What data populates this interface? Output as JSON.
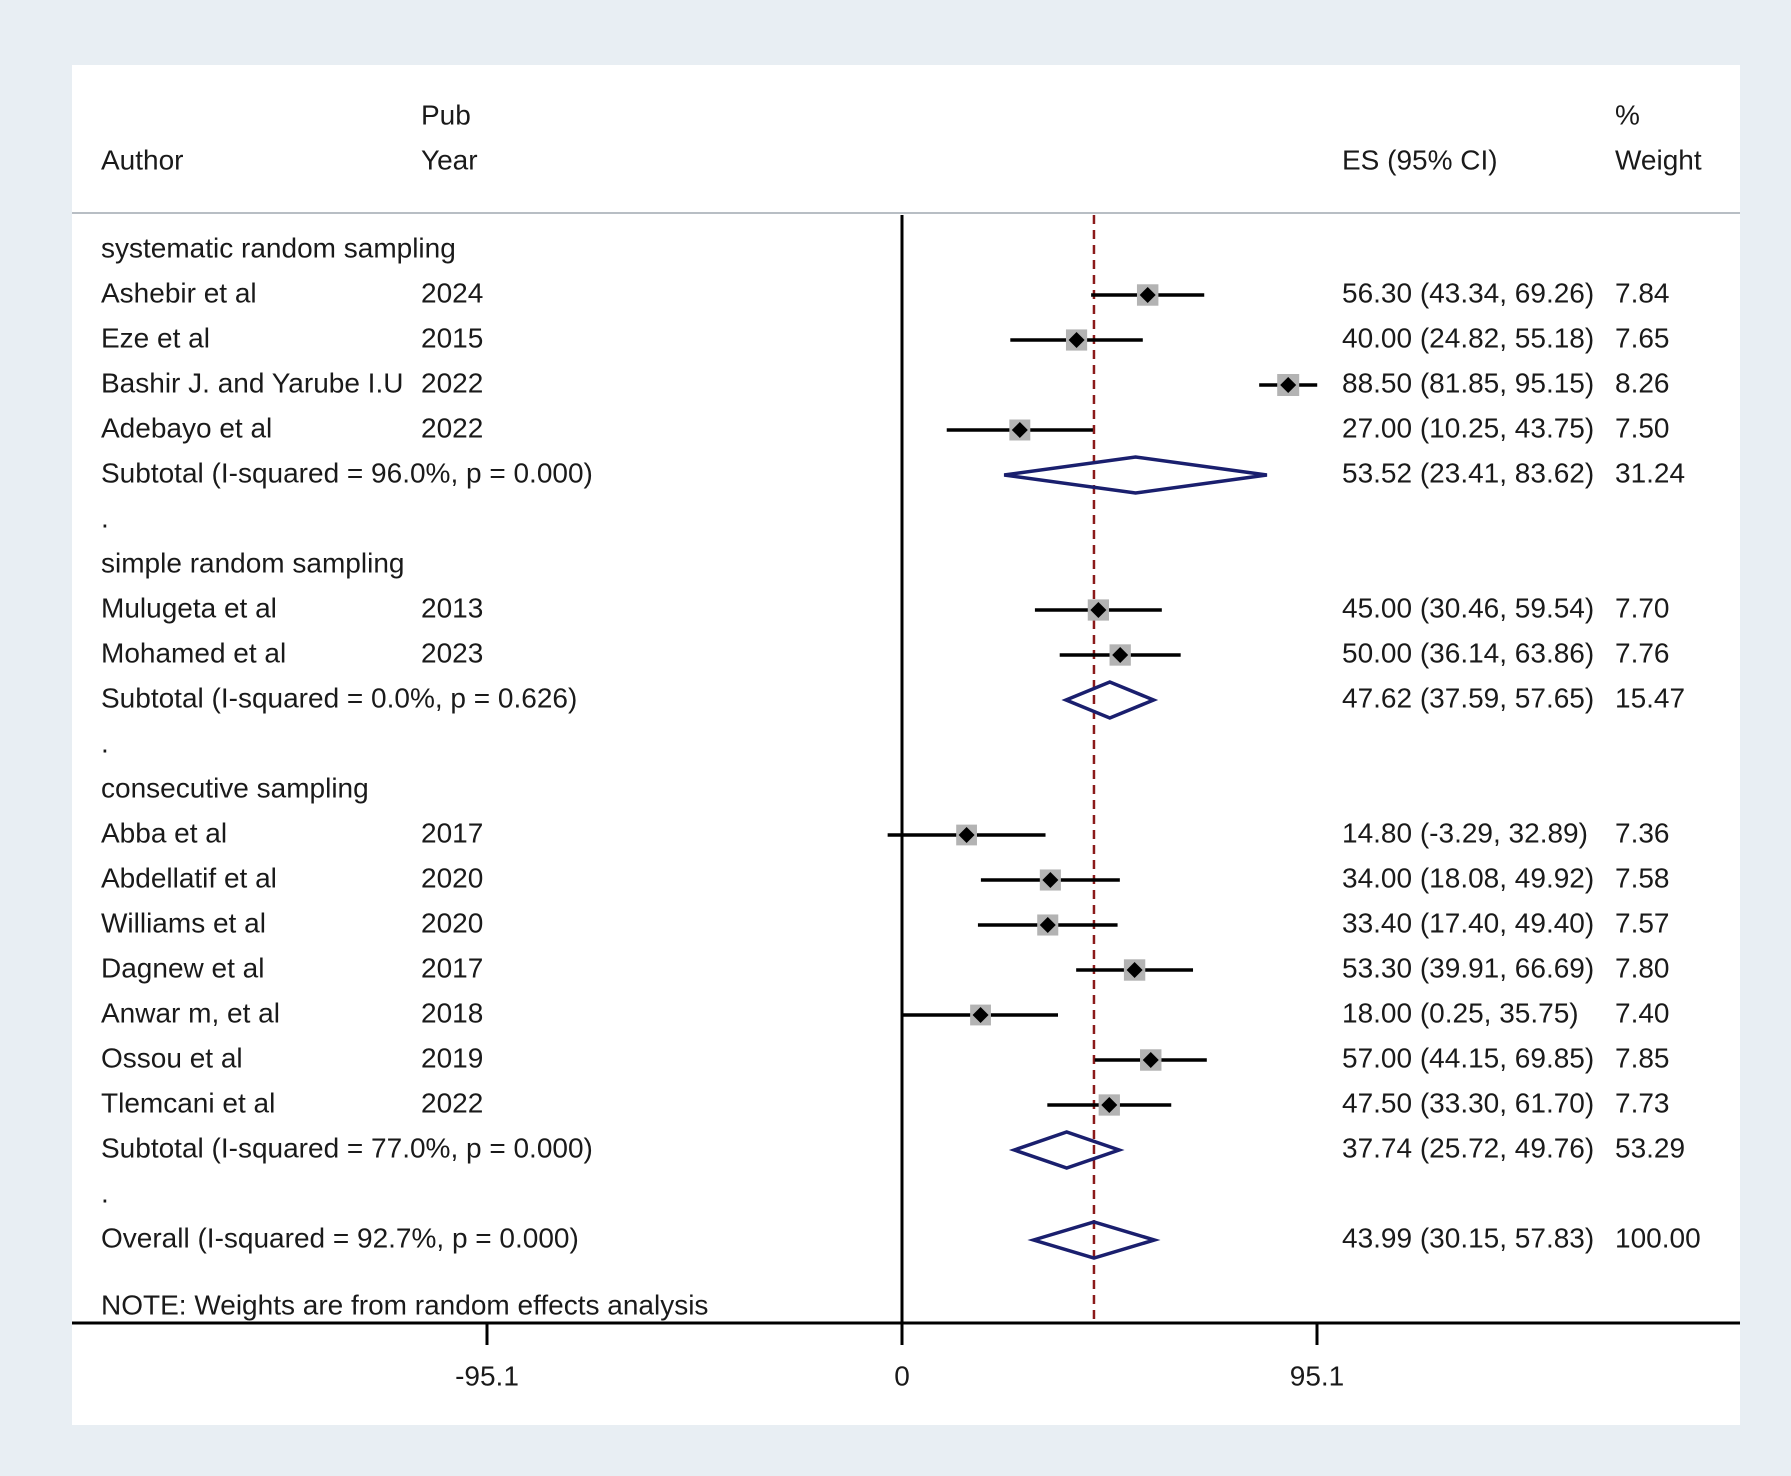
{
  "chart_data": {
    "type": "forest",
    "headers": {
      "author": "Author",
      "pub_top": "Pub",
      "pub_bottom": "Year",
      "es": "ES (95% CI)",
      "weight_top": "%",
      "weight_bottom": "Weight"
    },
    "xaxis": {
      "ticks": [
        -95.1,
        0,
        95.1
      ],
      "tick_labels": [
        "-95.1",
        "0",
        "95.1"
      ],
      "range": [
        -95.1,
        95.1
      ]
    },
    "overall_line": 43.99,
    "groups": [
      {
        "label": "systematic random sampling",
        "studies": [
          {
            "author": "Ashebir et al",
            "year": "2024",
            "es": 56.3,
            "lo": 43.34,
            "hi": 69.26,
            "es_text": "56.30 (43.34, 69.26)",
            "weight": "7.84"
          },
          {
            "author": "Eze et al",
            "year": "2015",
            "es": 40.0,
            "lo": 24.82,
            "hi": 55.18,
            "es_text": "40.00 (24.82, 55.18)",
            "weight": "7.65"
          },
          {
            "author": "Bashir J. and Yarube I.U",
            "year": "2022",
            "es": 88.5,
            "lo": 81.85,
            "hi": 95.15,
            "es_text": "88.50 (81.85, 95.15)",
            "weight": "8.26"
          },
          {
            "author": "Adebayo et al",
            "year": "2022",
            "es": 27.0,
            "lo": 10.25,
            "hi": 43.75,
            "es_text": "27.00 (10.25, 43.75)",
            "weight": "7.50"
          }
        ],
        "subtotal": {
          "label": "Subtotal  (I-squared = 96.0%, p = 0.000)",
          "es": 53.52,
          "lo": 23.41,
          "hi": 83.62,
          "es_text": "53.52 (23.41, 83.62)",
          "weight": "31.24"
        }
      },
      {
        "label": "simple random sampling",
        "studies": [
          {
            "author": "Mulugeta et al",
            "year": "2013",
            "es": 45.0,
            "lo": 30.46,
            "hi": 59.54,
            "es_text": "45.00 (30.46, 59.54)",
            "weight": "7.70"
          },
          {
            "author": "Mohamed et al",
            "year": "2023",
            "es": 50.0,
            "lo": 36.14,
            "hi": 63.86,
            "es_text": "50.00 (36.14, 63.86)",
            "weight": "7.76"
          }
        ],
        "subtotal": {
          "label": "Subtotal  (I-squared = 0.0%, p = 0.626)",
          "es": 47.62,
          "lo": 37.59,
          "hi": 57.65,
          "es_text": "47.62 (37.59, 57.65)",
          "weight": "15.47"
        }
      },
      {
        "label": "consecutive sampling",
        "studies": [
          {
            "author": "Abba et al",
            "year": "2017",
            "es": 14.8,
            "lo": -3.29,
            "hi": 32.89,
            "es_text": "14.80 (-3.29, 32.89)",
            "weight": "7.36"
          },
          {
            "author": "Abdellatif et al",
            "year": "2020",
            "es": 34.0,
            "lo": 18.08,
            "hi": 49.92,
            "es_text": "34.00 (18.08, 49.92)",
            "weight": "7.58"
          },
          {
            "author": "Williams et al",
            "year": "2020",
            "es": 33.4,
            "lo": 17.4,
            "hi": 49.4,
            "es_text": "33.40 (17.40, 49.40)",
            "weight": "7.57"
          },
          {
            "author": "Dagnew et al",
            "year": "2017",
            "es": 53.3,
            "lo": 39.91,
            "hi": 66.69,
            "es_text": "53.30 (39.91, 66.69)",
            "weight": "7.80"
          },
          {
            "author": "Anwar m, et al",
            "year": "2018",
            "es": 18.0,
            "lo": 0.25,
            "hi": 35.75,
            "es_text": "18.00 (0.25, 35.75)",
            "weight": "7.40"
          },
          {
            "author": "Ossou et al",
            "year": "2019",
            "es": 57.0,
            "lo": 44.15,
            "hi": 69.85,
            "es_text": "57.00 (44.15, 69.85)",
            "weight": "7.85"
          },
          {
            "author": "Tlemcani et al",
            "year": "2022",
            "es": 47.5,
            "lo": 33.3,
            "hi": 61.7,
            "es_text": "47.50 (33.30, 61.70)",
            "weight": "7.73"
          }
        ],
        "subtotal": {
          "label": "Subtotal  (I-squared = 77.0%, p = 0.000)",
          "es": 37.74,
          "lo": 25.72,
          "hi": 49.76,
          "es_text": "37.74 (25.72, 49.76)",
          "weight": "53.29"
        }
      }
    ],
    "overall": {
      "label": "Overall  (I-squared = 92.7%, p = 0.000)",
      "es": 43.99,
      "lo": 30.15,
      "hi": 57.83,
      "es_text": "43.99 (30.15, 57.83)",
      "weight": "100.00"
    },
    "separator": ".",
    "note": "NOTE: Weights are from random effects analysis",
    "colors": {
      "background": "#e8eef3",
      "panel": "#ffffff",
      "ci_line": "#000000",
      "point": "#000000",
      "weight_box": "#b3b3b3",
      "diamond": "#1a1f6e",
      "overall_line": "#8b1a1a",
      "rule": "#b8bec4"
    }
  }
}
